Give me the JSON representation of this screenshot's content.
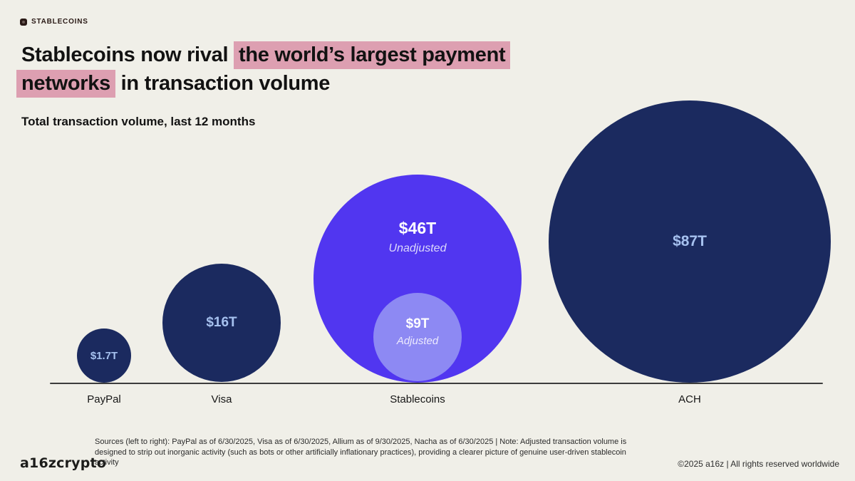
{
  "badge": {
    "label": "STABLECOINS"
  },
  "title": {
    "line1_plain": "Stablecoins now rival ",
    "line1_highlight": "the world’s largest payment",
    "line2_highlight": "networks",
    "line2_plain": " in transaction volume",
    "highlight_color": "#dd9fb1"
  },
  "subtitle": "Total transaction volume, last 12 months",
  "chart_data": {
    "type": "scatter",
    "variant": "proportional-area bubble chart (circle area proportional to transaction volume)",
    "title": "Total transaction volume, last 12 months",
    "unit": "trillions of USD",
    "legend": "none",
    "axes": "none (category labels along a baseline)",
    "categories": [
      "PayPal",
      "Visa",
      "Stablecoins",
      "ACH"
    ],
    "bubbles": [
      {
        "category": "PayPal",
        "value": 1.7,
        "label": "$1.7T",
        "color": "#1b2a5f"
      },
      {
        "category": "Visa",
        "value": 16,
        "label": "$16T",
        "color": "#1b2a5f"
      },
      {
        "category": "Stablecoins",
        "value": 46,
        "label": "$46T",
        "sublabel": "Unadjusted",
        "color": "#5136f0"
      },
      {
        "category": "Stablecoins",
        "value": 9,
        "label": "$9T",
        "sublabel": "Adjusted",
        "color": "#8d89f3",
        "nested_in": "Stablecoins unadjusted bubble"
      },
      {
        "category": "ACH",
        "value": 87,
        "label": "$87T",
        "color": "#1b2a5f"
      }
    ]
  },
  "colors": {
    "background": "#f0efe8",
    "navy_bubble": "#1b2a5f",
    "purple_bubble": "#5136f0",
    "lavender_bubble": "#8d89f3",
    "navy_value_text": "#a6c1ef",
    "title_highlight": "#dd9fb1",
    "baseline": "#3c3c3c"
  },
  "footer": {
    "sources": "Sources (left to right): PayPal as of 6/30/2025, Visa as of 6/30/2025, Allium as of 9/30/2025, Nacha as of 6/30/2025   |   Note: Adjusted transaction volume is designed to strip out inorganic activity (such as bots or other artificially inflationary practices), providing a clearer picture of genuine user-driven stablecoin activity",
    "logo": "a16zcrypto",
    "copyright": "©2025 a16z | All rights reserved worldwide"
  }
}
